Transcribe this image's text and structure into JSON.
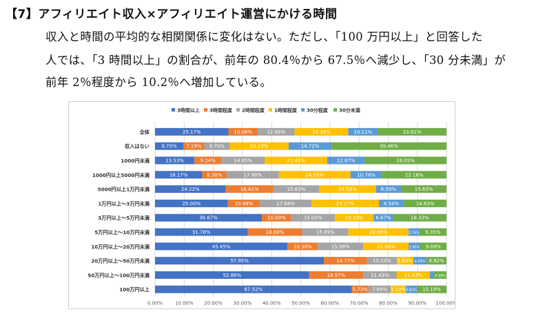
{
  "heading": "【7】アフィリエイト収入×アフィリエイト運営にかける時間",
  "paragraph": [
    "収入と時間の平均的な相関関係に変化はない。ただし、「100 万円以上」と回答した",
    "人では、「3 時間以上」の割合が、前年の 80.4％から 67.5％へ減少し、「30 分未満」が",
    "前年 2％程度から 10.2％へ増加している。"
  ],
  "chart_data": {
    "type": "bar",
    "orientation": "horizontal",
    "stacked": "percent",
    "title": "",
    "xlim": [
      0,
      100
    ],
    "xticks": [
      "0.00%",
      "10.00%",
      "20.00%",
      "30.00%",
      "40.00%",
      "50.00%",
      "60.00%",
      "70.00%",
      "80.00%",
      "90.00%",
      "100.00%"
    ],
    "legend_position": "top",
    "series": [
      {
        "name": "3時間以上",
        "color": "#4472c4"
      },
      {
        "name": "3時間程度",
        "color": "#ed7d31"
      },
      {
        "name": "2時間程度",
        "color": "#a5a5a5"
      },
      {
        "name": "1時間程度",
        "color": "#ffc000"
      },
      {
        "name": "30分程度",
        "color": "#5b9bd5"
      },
      {
        "name": "30分未満",
        "color": "#70ad47"
      }
    ],
    "categories": [
      {
        "label": "全体",
        "values": [
          25.17,
          10.06,
          12.66,
          18.39,
          10.11,
          23.61
        ],
        "labels": [
          "25.17%",
          "10.06%",
          "12.66%",
          "18.39%",
          "10.11%",
          "23.61%"
        ]
      },
      {
        "label": "収入はない",
        "values": [
          9.7,
          7.19,
          8.7,
          20.23,
          14.72,
          39.46
        ],
        "labels": [
          "9.70%",
          "7.19%",
          "8.70%",
          "20.23%",
          "14.72%",
          "39.46%"
        ]
      },
      {
        "label": "1000円未満",
        "values": [
          13.53,
          9.24,
          14.85,
          21.45,
          12.87,
          28.05
        ],
        "labels": [
          "13.53%",
          "9.24%",
          "14.85%",
          "21.45%",
          "12.87%",
          "28.05%"
        ]
      },
      {
        "label": "1000円以上5000円未満",
        "values": [
          16.17,
          8.38,
          17.96,
          24.55,
          10.78,
          22.16
        ],
        "labels": [
          "16.17%",
          "8.38%",
          "17.96%",
          "24.55%",
          "10.78%",
          "22.16%"
        ]
      },
      {
        "label": "5000円以上1万円未満",
        "values": [
          24.22,
          16.41,
          15.63,
          19.53,
          8.59,
          15.63
        ],
        "labels": [
          "24.22%",
          "16.41%",
          "15.63%",
          "19.53%",
          "8.59%",
          "15.63%"
        ]
      },
      {
        "label": "1万円以上～3万円未満",
        "values": [
          25.0,
          10.98,
          17.68,
          23.17,
          8.54,
          14.63
        ],
        "labels": [
          "25.00%",
          "10.98%",
          "17.68%",
          "23.17%",
          "8.54%",
          "14.63%"
        ]
      },
      {
        "label": "3万円以上～5万円未満",
        "values": [
          36.67,
          10.0,
          15.0,
          13.33,
          6.67,
          18.33
        ],
        "labels": [
          "36.67%",
          "10.00%",
          "15.00%",
          "13.33%",
          "6.67%",
          "18.33%"
        ]
      },
      {
        "label": "5万円以上～10万円未満",
        "values": [
          31.78,
          18.69,
          15.89,
          20.56,
          3.74,
          9.35
        ],
        "labels": [
          "31.78%",
          "18.69%",
          "15.89%",
          "20.56%",
          "3.74%",
          "9.35%"
        ]
      },
      {
        "label": "10万円以上～20万円未満",
        "values": [
          45.45,
          10.39,
          15.58,
          15.58,
          3.9,
          9.09
        ],
        "labels": [
          "45.45%",
          "10.39%",
          "15.58%",
          "15.58%",
          "3.90%",
          "9.09%"
        ]
      },
      {
        "label": "20万円以上～50万円未満",
        "values": [
          57.95,
          14.77,
          10.23,
          5.68,
          4.55,
          6.82
        ],
        "labels": [
          "57.95%",
          "14.77%",
          "10.23%",
          "5.68%",
          "4.55%",
          "6.82%"
        ]
      },
      {
        "label": "50万円以上～100万円未満",
        "values": [
          52.86,
          18.57,
          11.43,
          11.43,
          1.43,
          4.29
        ],
        "labels": [
          "52.86%",
          "18.57%",
          "11.43%",
          "11.43%",
          "",
          "4.29%"
        ]
      },
      {
        "label": "100万円以上",
        "values": [
          67.52,
          5.73,
          7.64,
          5.1,
          3.82,
          10.19
        ],
        "labels": [
          "67.52%",
          "5.73%",
          "7.64%",
          "5.10%",
          "3.82%",
          "10.19%"
        ]
      }
    ]
  }
}
